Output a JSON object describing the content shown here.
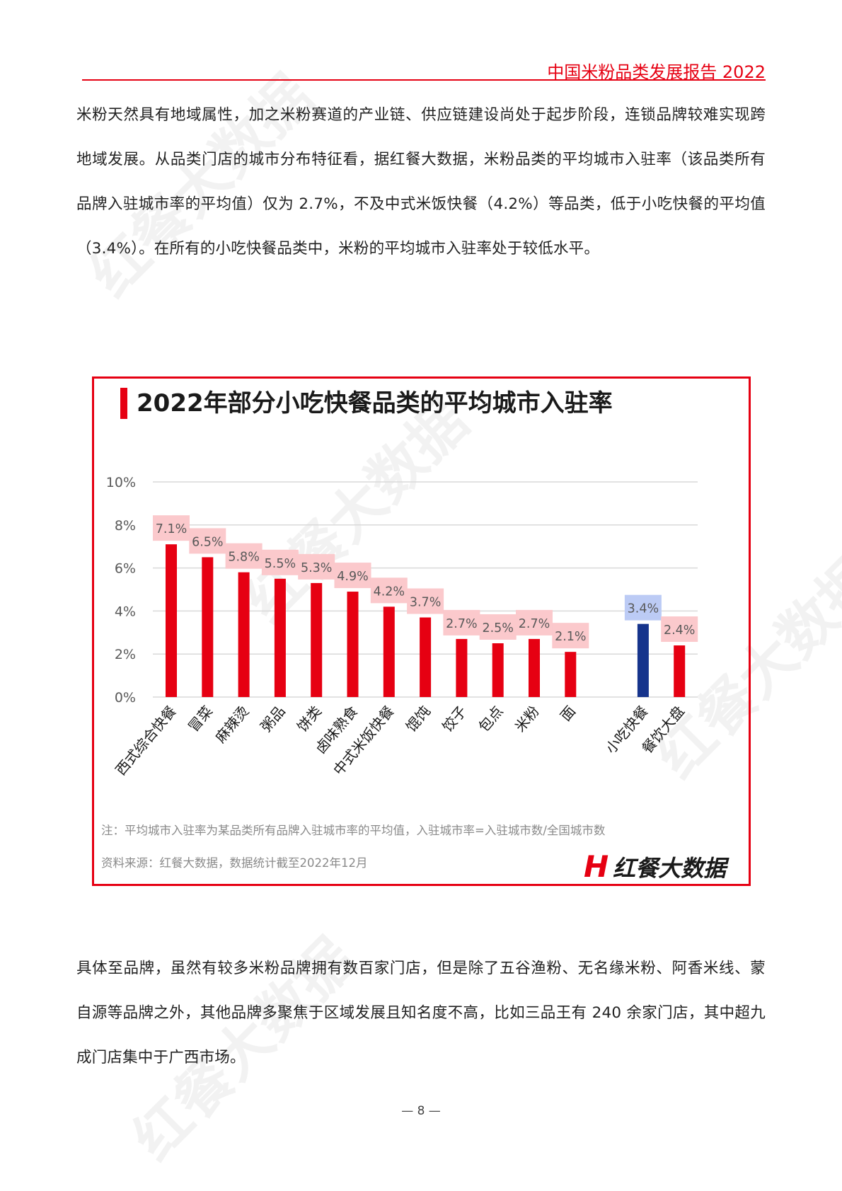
{
  "header": {
    "title": "中国米粉品类发展报告 2022"
  },
  "paragraphs": [
    "米粉天然具有地域属性，加之米粉赛道的产业链、供应链建设尚处于起步阶段，连锁品牌较难实现跨地域发展。从品类门店的城市分布特征看，据红餐大数据，米粉品类的平均城市入驻率（该品类所有品牌入驻城市率的平均值）仅为 2.7%，不及中式米饭快餐（4.2%）等品类，低于小吃快餐的平均值（3.4%）。在所有的小吃快餐品类中，米粉的平均城市入驻率处于较低水平。",
    "具体至品牌，虽然有较多米粉品牌拥有数百家门店，但是除了五谷渔粉、无名缘米粉、阿香米线、蒙自源等品牌之外，其他品牌多聚焦于区域发展且知名度不高，比如三品王有 240 余家门店，其中超九成门店集中于广西市场。"
  ],
  "chart_data": {
    "type": "bar",
    "title": "2022年部分小吃快餐品类的平均城市入驻率",
    "categories": [
      "西式综合快餐",
      "冒菜",
      "麻辣烫",
      "粥品",
      "饼类",
      "卤味熟食",
      "中式米饭快餐",
      "馄饨",
      "饺子",
      "包点",
      "米粉",
      "面",
      "",
      "小吃快餐",
      "餐饮大盘"
    ],
    "values": [
      7.1,
      6.5,
      5.8,
      5.5,
      5.3,
      4.9,
      4.2,
      3.7,
      2.7,
      2.5,
      2.7,
      2.1,
      null,
      3.4,
      2.4
    ],
    "data_labels": [
      "7.1%",
      "6.5%",
      "5.8%",
      "5.5%",
      "5.3%",
      "4.9%",
      "4.2%",
      "3.7%",
      "2.7%",
      "2.5%",
      "2.7%",
      "2.1%",
      "",
      "3.4%",
      "2.4%"
    ],
    "yticks": [
      "0%",
      "2%",
      "4%",
      "6%",
      "8%",
      "10%"
    ],
    "ylim": [
      0,
      10
    ],
    "grid": true,
    "colors": {
      "default": "#e60012",
      "highlight": "#16348c",
      "label_bg": "#fbc9cc",
      "highlight_label_bg": "#bccbf5"
    },
    "highlight_category": "小吃快餐"
  },
  "chart_notes": {
    "note": "注：平均城市入驻率为某品类所有品牌入驻城市率的平均值，入驻城市率=入驻城市数/全国城市数",
    "source": "资料来源：红餐大数据，数据统计截至2022年12月"
  },
  "logo": {
    "text": "红餐大数据"
  },
  "watermark": "红餐大数据",
  "page_number": "— 8 —"
}
